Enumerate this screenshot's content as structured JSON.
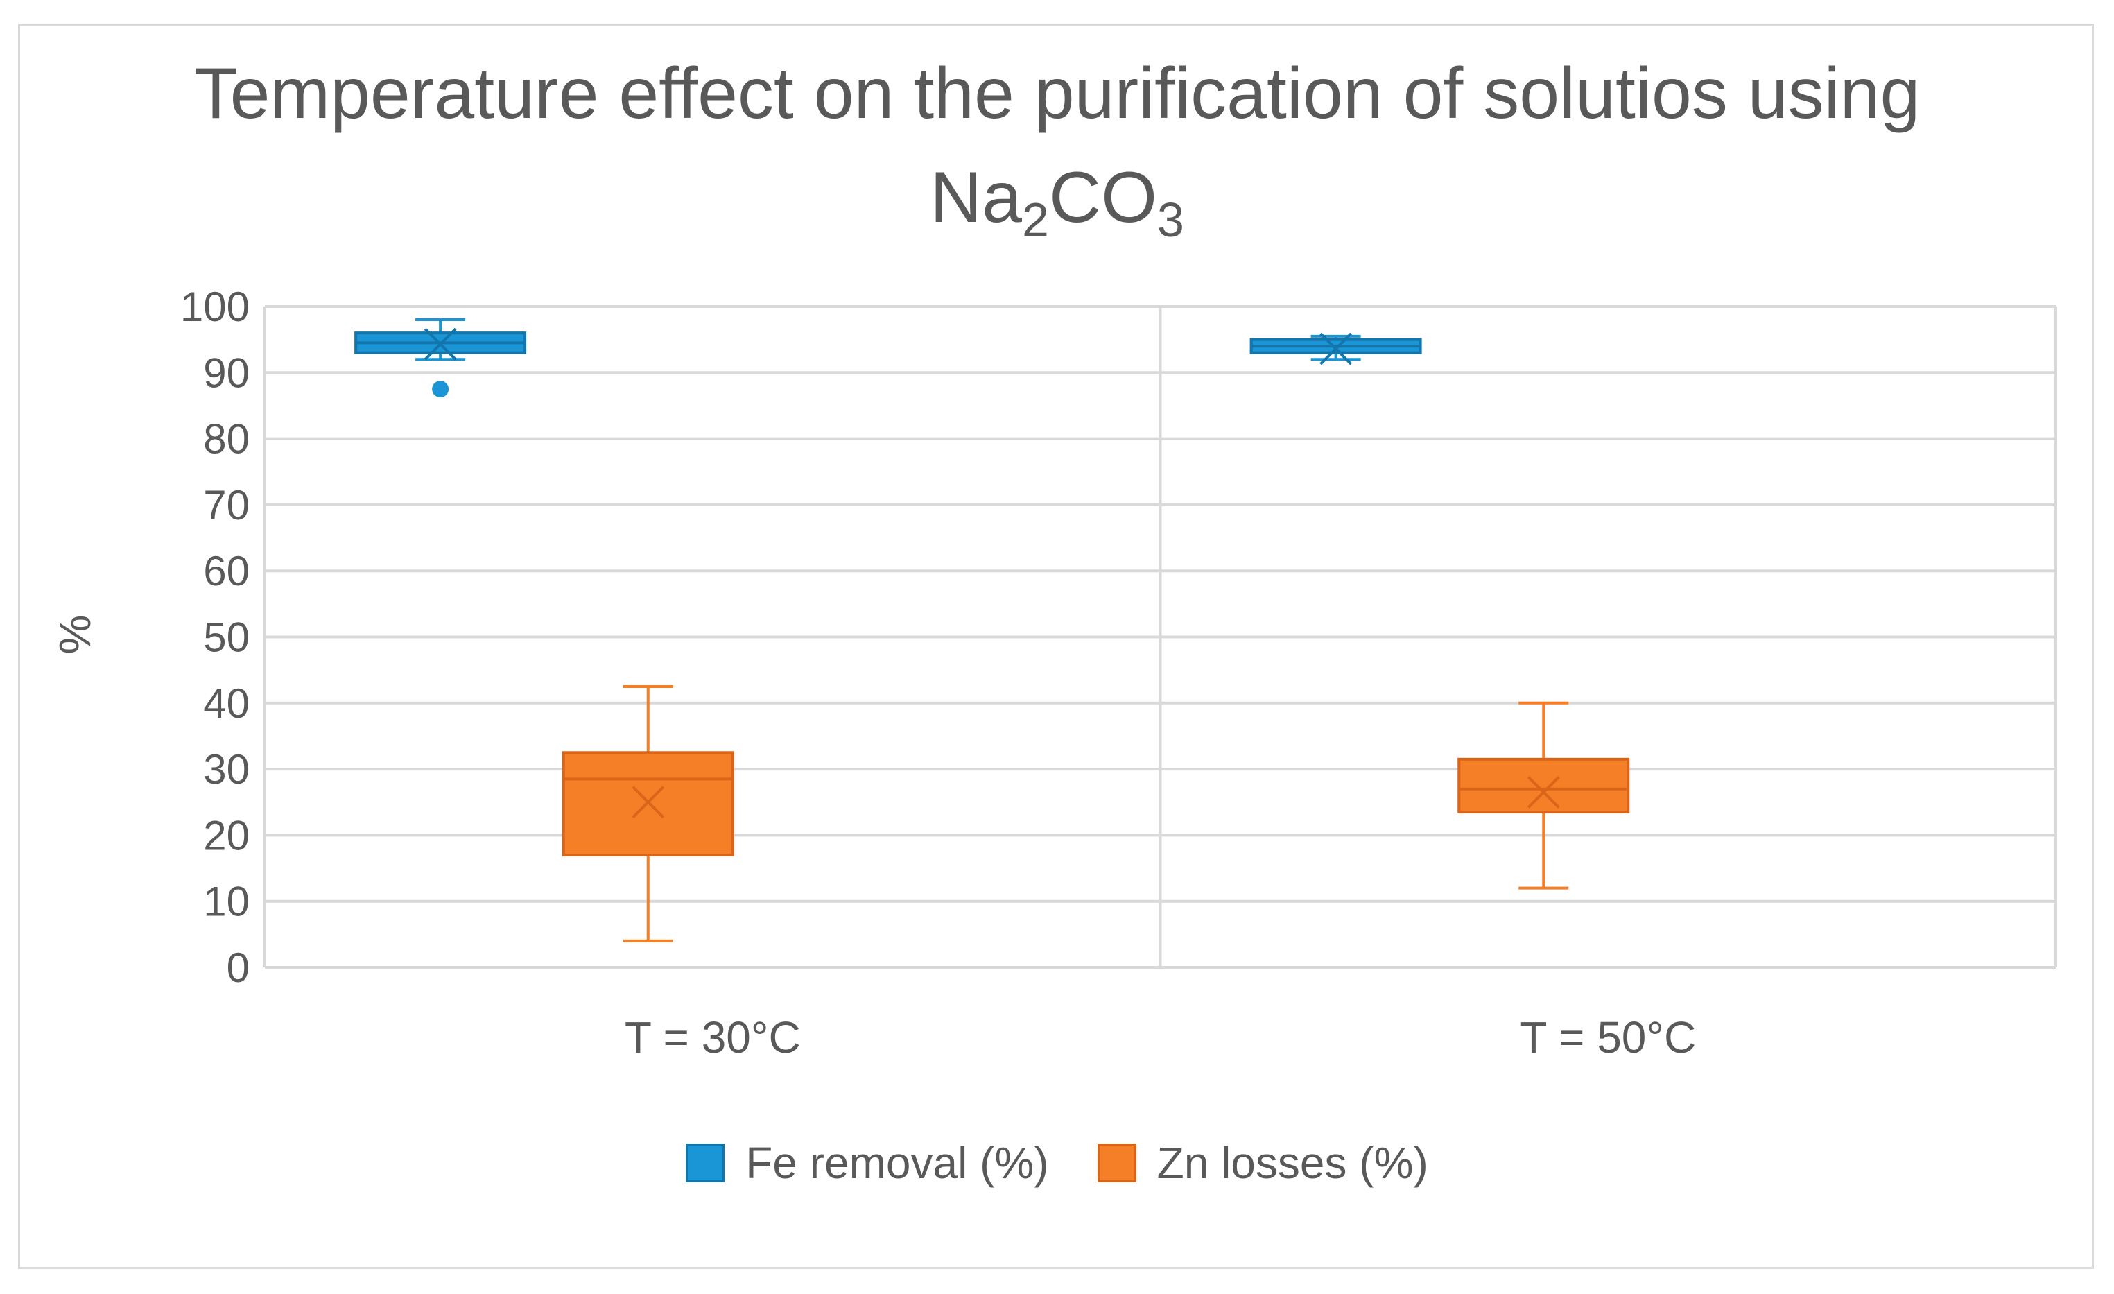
{
  "colors": {
    "fe": "#1a95d6",
    "fe_dark": "#1276ad",
    "zn": "#f47f26",
    "zn_dark": "#d9651a",
    "grid": "#d9d9d9",
    "text": "#595959"
  },
  "chart_data": {
    "type": "boxplot",
    "title_main": "Temperature effect on the purification of solutios using",
    "title_formula": {
      "a": "Na",
      "b": "2",
      "c": "CO",
      "d": "3"
    },
    "xlabel": "",
    "ylabel": "%",
    "ylim": [
      0,
      100
    ],
    "yticks": [
      0,
      10,
      20,
      30,
      40,
      50,
      60,
      70,
      80,
      90,
      100
    ],
    "ytick_labels": [
      "0",
      "10",
      "20",
      "30",
      "40",
      "50",
      "60",
      "70",
      "80",
      "90",
      "100"
    ],
    "grid": true,
    "legend_position": "bottom",
    "categories": [
      "T = 30°C",
      "T = 50°C"
    ],
    "series": [
      {
        "name": "Fe removal (%)",
        "color_key": "fe",
        "boxes": [
          {
            "min": 92,
            "q1": 93,
            "median": 94.5,
            "q3": 96,
            "max": 98,
            "mean": 94.3,
            "outliers": [
              87.5
            ]
          },
          {
            "min": 92,
            "q1": 93,
            "median": 94,
            "q3": 95,
            "max": 95.5,
            "mean": 93.6,
            "outliers": []
          }
        ]
      },
      {
        "name": "Zn losses (%)",
        "color_key": "zn",
        "boxes": [
          {
            "min": 4,
            "q1": 17,
            "median": 28.5,
            "q3": 32.5,
            "max": 42.5,
            "mean": 25,
            "outliers": []
          },
          {
            "min": 12,
            "q1": 23.5,
            "median": 27,
            "q3": 31.5,
            "max": 40,
            "mean": 26.5,
            "outliers": []
          }
        ]
      }
    ]
  }
}
